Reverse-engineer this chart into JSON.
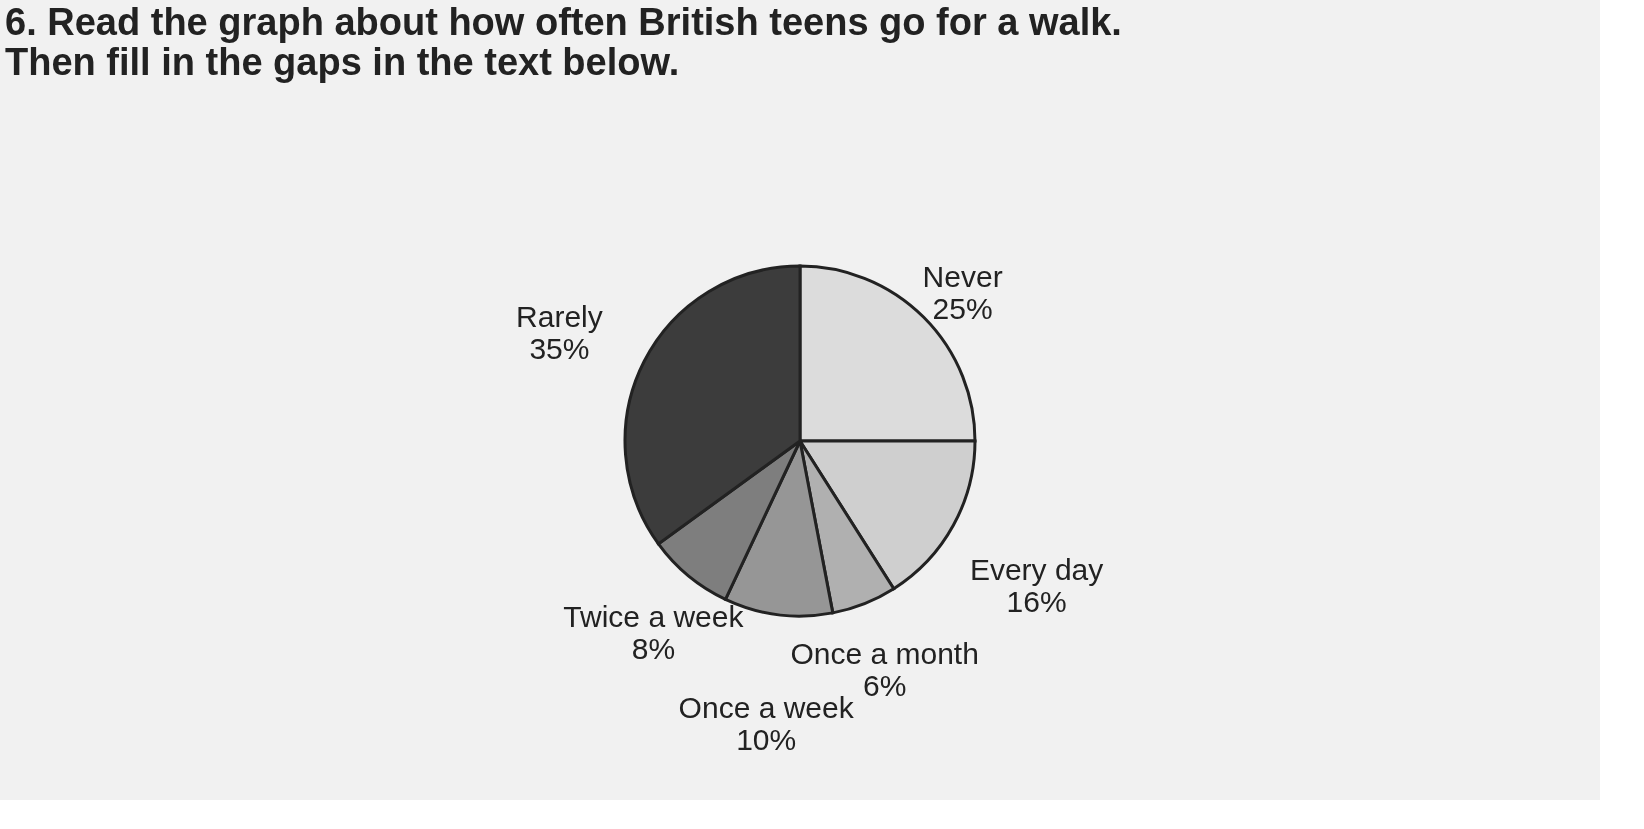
{
  "chart_data": {
    "type": "pie",
    "title": "6.   Read the graph about how often British teens go for a walk.\n      Then fill in the gaps in the text below.",
    "categories": [
      "Never",
      "Every day",
      "Once a month",
      "Once a week",
      "Twice a week",
      "Rarely"
    ],
    "values": [
      25,
      16,
      6,
      10,
      8,
      35
    ],
    "value_labels": [
      "25%",
      "16%",
      "6%",
      "10%",
      "8%",
      "35%"
    ],
    "colors": [
      "#dcdcdc",
      "#cfcfcf",
      "#b0b0b0",
      "#969696",
      "#7e7e7e",
      "#3c3c3c"
    ],
    "legend": false
  }
}
